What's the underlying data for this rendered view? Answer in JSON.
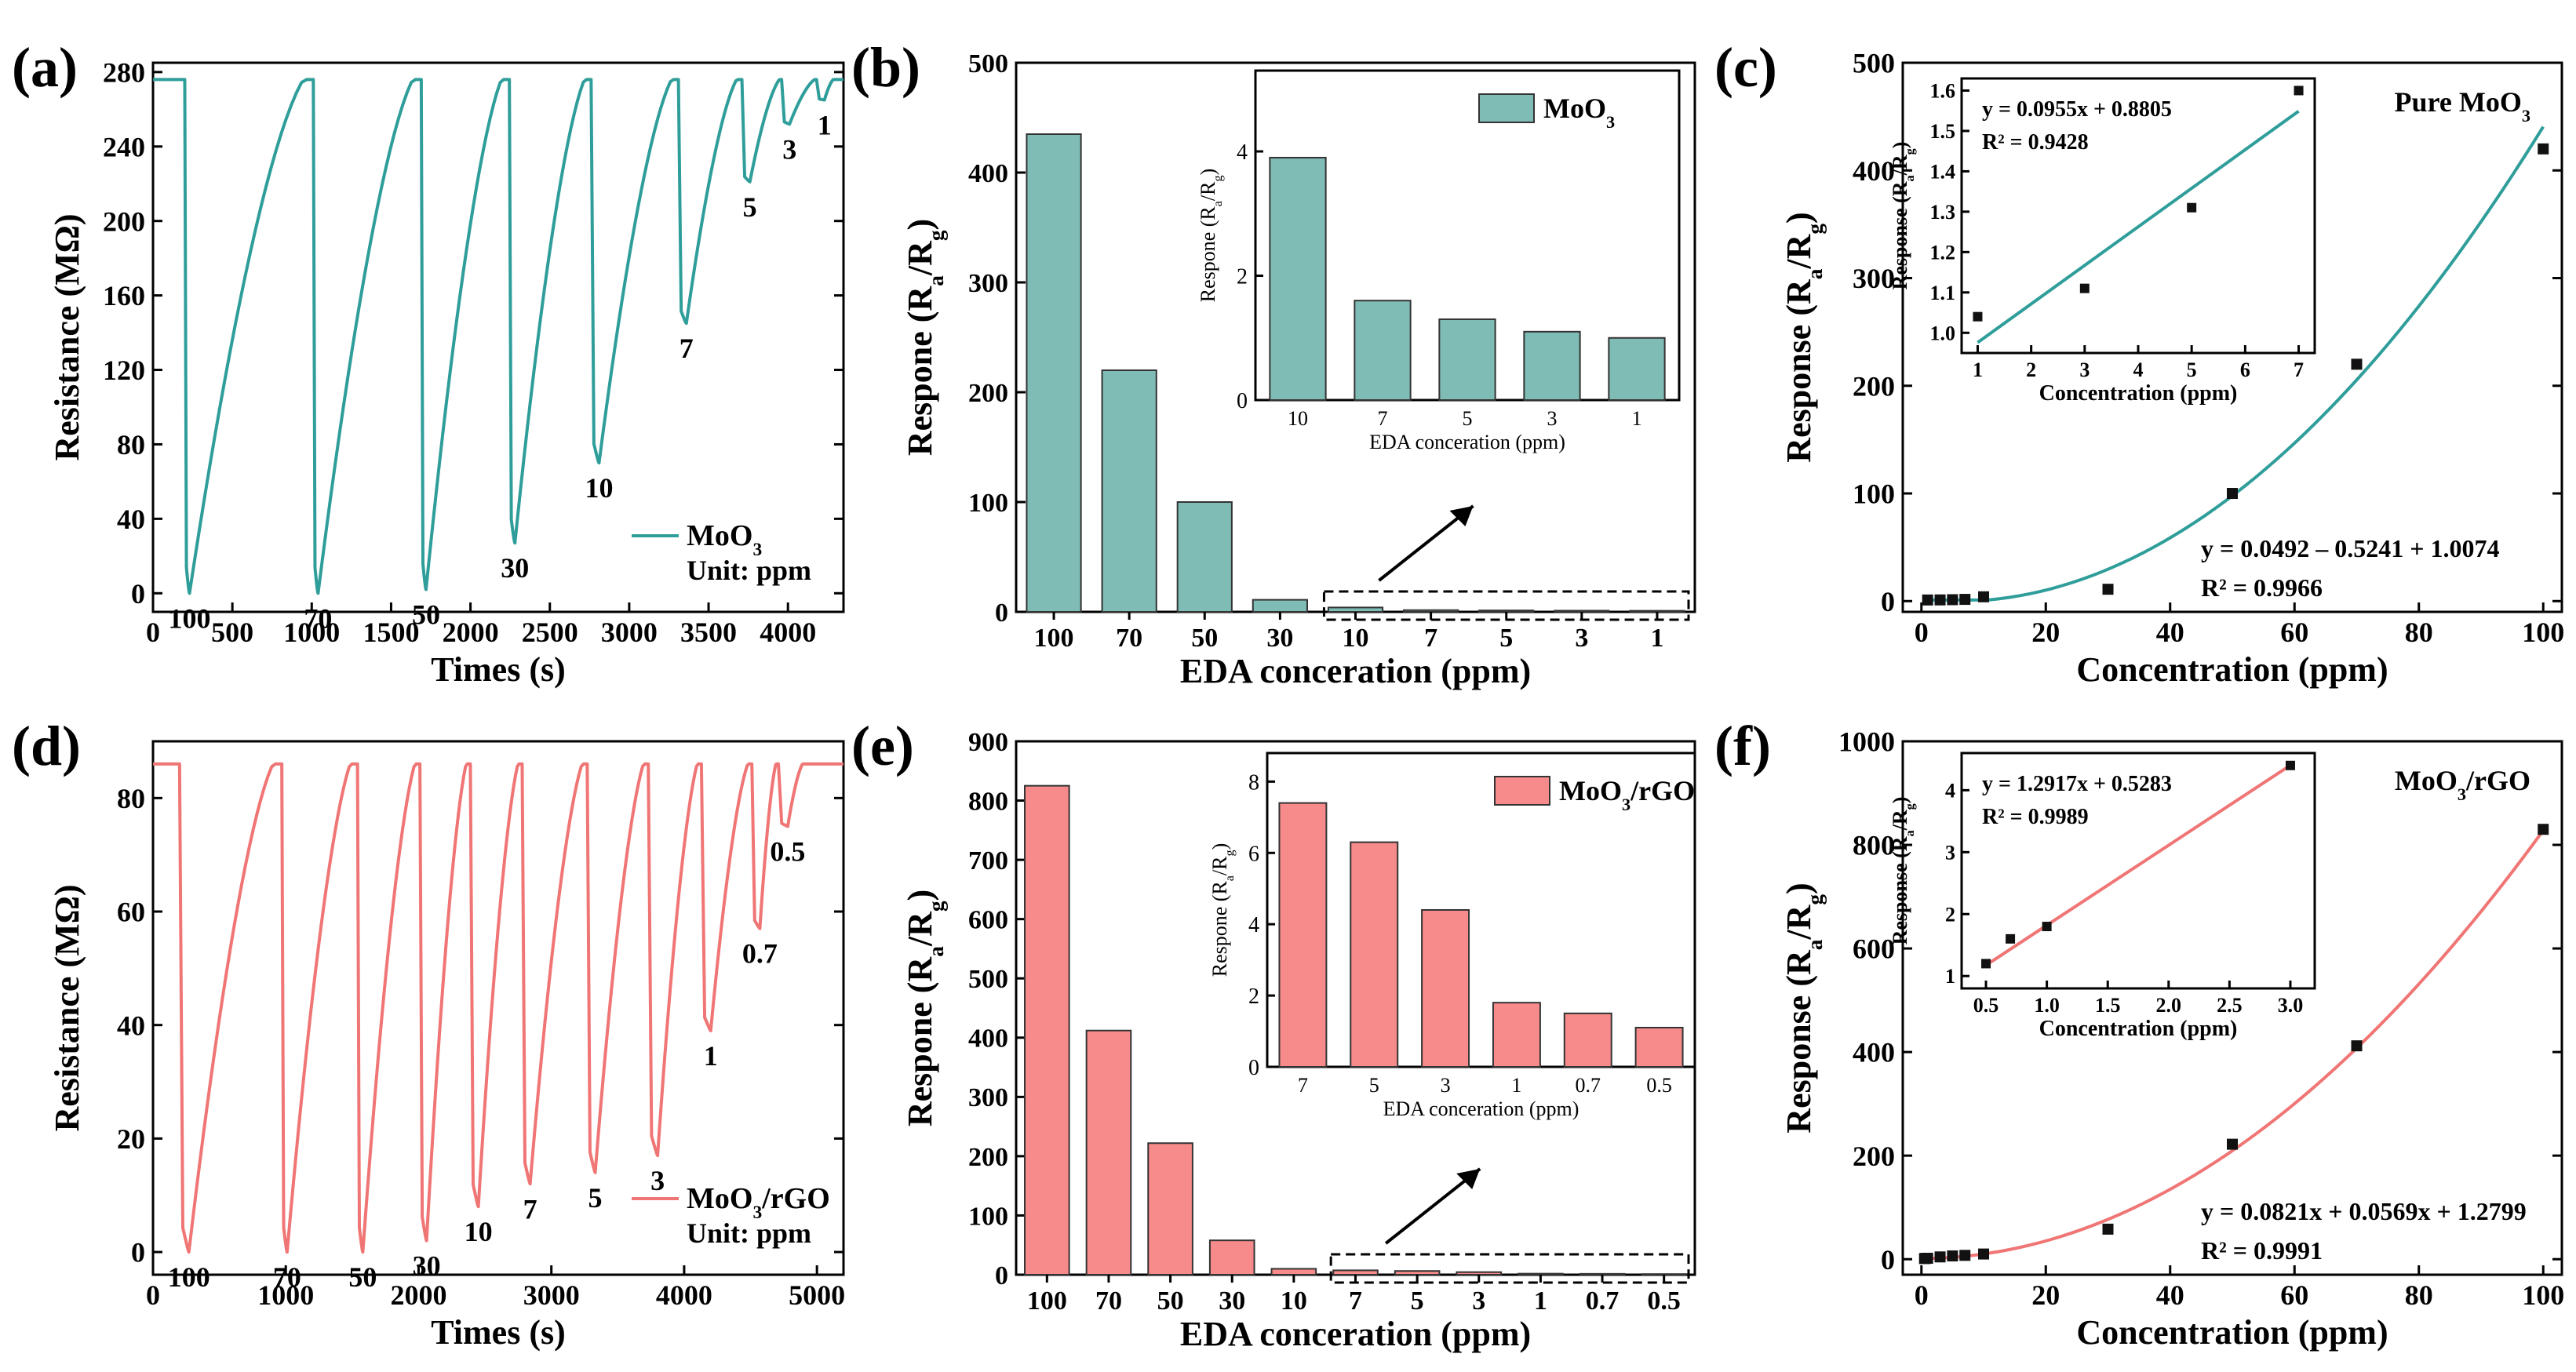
{
  "colors": {
    "teal": "#2f9e9a",
    "tealBar": "#7fbcb6",
    "red": "#f07575",
    "redBar": "#f78b8b",
    "axis": "#000000",
    "black": "#000000"
  },
  "panels": {
    "a": {
      "label": "(a)",
      "ylabel": "Resistance (MΩ)",
      "xlabel": "Times (s)",
      "yticks": [
        "0",
        "40",
        "80",
        "120",
        "160",
        "200",
        "240",
        "280"
      ],
      "xticks": [
        "0",
        "500",
        "1000",
        "1500",
        "2000",
        "2500",
        "3000",
        "3500",
        "4000"
      ],
      "legend": "MoO3",
      "unit": "Unit: ppm"
    },
    "b": {
      "label": "(b)",
      "ylabel": "Respone (Ra/Rg)",
      "xlabel": "EDA conceration (ppm)",
      "yticks": [
        "0",
        "100",
        "200",
        "300",
        "400",
        "500"
      ],
      "legend": "MoO3",
      "inset": {
        "ylabel": "Respone (Ra/Rg)",
        "xlabel": "EDA conceration (ppm)",
        "yticks": [
          "0",
          "2",
          "4"
        ]
      }
    },
    "c": {
      "label": "(c)",
      "ylabel": "Response (Ra/Rg)",
      "xlabel": "Concentration (ppm)",
      "yticks": [
        "0",
        "100",
        "200",
        "300",
        "400",
        "500"
      ],
      "xticks": [
        "0",
        "20",
        "40",
        "60",
        "80",
        "100"
      ],
      "title": "Pure MoO3",
      "eq": "y = 0.0492 – 0.5241 + 1.0074",
      "r2": "R² = 0.9966",
      "inset": {
        "ylabel": "Response (Ra/Rg)",
        "xlabel": "Concentration (ppm)",
        "yticks": [
          "1.0",
          "1.1",
          "1.2",
          "1.3",
          "1.4",
          "1.5",
          "1.6"
        ],
        "xticks": [
          "1",
          "2",
          "3",
          "4",
          "5",
          "6",
          "7"
        ],
        "eq": "y = 0.0955x + 0.8805",
        "r2": "R² = 0.9428"
      }
    },
    "d": {
      "label": "(d)",
      "ylabel": "Resistance (MΩ)",
      "xlabel": "Times (s)",
      "yticks": [
        "0",
        "20",
        "40",
        "60",
        "80"
      ],
      "xticks": [
        "0",
        "1000",
        "2000",
        "3000",
        "4000",
        "5000"
      ],
      "legend": "MoO3/rGO",
      "unit": "Unit: ppm"
    },
    "e": {
      "label": "(e)",
      "ylabel": "Respone (Ra/Rg)",
      "xlabel": "EDA conceration (ppm)",
      "yticks": [
        "0",
        "100",
        "200",
        "300",
        "400",
        "500",
        "600",
        "700",
        "800",
        "900"
      ],
      "legend": "MoO3/rGO",
      "inset": {
        "ylabel": "Respone (Ra/Rg)",
        "xlabel": "EDA conceration (ppm)",
        "yticks": [
          "0",
          "2",
          "4",
          "6",
          "8"
        ]
      }
    },
    "f": {
      "label": "(f)",
      "ylabel": "Response (Ra/Rg)",
      "xlabel": "Concentration (ppm)",
      "yticks": [
        "0",
        "200",
        "400",
        "600",
        "800",
        "1000"
      ],
      "xticks": [
        "0",
        "20",
        "40",
        "60",
        "80",
        "100"
      ],
      "title": "MoO3/rGO",
      "eq": "y = 0.0821x + 0.0569x + 1.2799",
      "r2": "R² = 0.9991",
      "inset": {
        "ylabel": "Response (Ra/Rg)",
        "xlabel": "Concentration (ppm)",
        "yticks": [
          "1",
          "2",
          "3",
          "4"
        ],
        "xticks": [
          "0.5",
          "1.0",
          "1.5",
          "2.0",
          "2.5",
          "3.0"
        ],
        "eq": "y = 1.2917x + 0.5283",
        "r2": "R² = 0.9989"
      }
    }
  },
  "chart_data": [
    {
      "type": "line",
      "panel": "a",
      "series": [
        {
          "name": "MoO3",
          "baseline": 276,
          "pulses": [
            {
              "t_on": 200,
              "t_min": 230,
              "t_off": 1000,
              "min": 0,
              "label": "100"
            },
            {
              "t_on": 1010,
              "t_min": 1040,
              "t_off": 1680,
              "min": 0,
              "label": "70"
            },
            {
              "t_on": 1690,
              "t_min": 1720,
              "t_off": 2230,
              "min": 2,
              "label": "50"
            },
            {
              "t_on": 2245,
              "t_min": 2280,
              "t_off": 2750,
              "min": 27,
              "label": "30"
            },
            {
              "t_on": 2760,
              "t_min": 2810,
              "t_off": 3300,
              "min": 70,
              "label": "10"
            },
            {
              "t_on": 3310,
              "t_min": 3360,
              "t_off": 3700,
              "min": 145,
              "label": "7"
            },
            {
              "t_on": 3710,
              "t_min": 3760,
              "t_off": 3960,
              "min": 221,
              "label": "5"
            },
            {
              "t_on": 3960,
              "t_min": 4010,
              "t_off": 4180,
              "min": 252,
              "label": "3"
            },
            {
              "t_on": 4180,
              "t_min": 4230,
              "t_off": 4290,
              "min": 265,
              "label": "1"
            }
          ]
        }
      ],
      "xlim": [
        0,
        4350
      ],
      "ylim": [
        -10,
        285
      ]
    },
    {
      "type": "bar",
      "panel": "b",
      "categories": [
        "100",
        "70",
        "50",
        "30",
        "10",
        "7",
        "5",
        "3",
        "1"
      ],
      "values": [
        435,
        220,
        100,
        11,
        4,
        1.6,
        1.3,
        1.1,
        1.0
      ],
      "ylim": [
        0,
        500
      ],
      "inset": {
        "categories": [
          "10",
          "7",
          "5",
          "3",
          "1"
        ],
        "values": [
          3.9,
          1.6,
          1.3,
          1.1,
          1.0
        ],
        "ylim": [
          0,
          5.3
        ]
      }
    },
    {
      "type": "scatter",
      "panel": "c",
      "x": [
        1,
        3,
        5,
        7,
        10,
        30,
        50,
        70,
        100
      ],
      "y": [
        1.04,
        1.11,
        1.31,
        1.6,
        4,
        11,
        100,
        220,
        420
      ],
      "xlim": [
        -3,
        103
      ],
      "ylim": [
        -10,
        500
      ],
      "inset": {
        "x": [
          1,
          3,
          5,
          7
        ],
        "y": [
          1.04,
          1.11,
          1.31,
          1.6
        ],
        "xlim": [
          0.7,
          7.3
        ],
        "ylim": [
          0.95,
          1.63
        ]
      }
    },
    {
      "type": "line",
      "panel": "d",
      "series": [
        {
          "name": "MoO3/rGO",
          "baseline": 86,
          "pulses": [
            {
              "t_on": 200,
              "t_min": 270,
              "t_off": 950,
              "min": 0,
              "label": "100"
            },
            {
              "t_on": 970,
              "t_min": 1010,
              "t_off": 1520,
              "min": 0,
              "label": "70"
            },
            {
              "t_on": 1540,
              "t_min": 1580,
              "t_off": 2000,
              "min": 0,
              "label": "50"
            },
            {
              "t_on": 2010,
              "t_min": 2060,
              "t_off": 2380,
              "min": 2,
              "label": "30"
            },
            {
              "t_on": 2390,
              "t_min": 2450,
              "t_off": 2770,
              "min": 8,
              "label": "10"
            },
            {
              "t_on": 2780,
              "t_min": 2840,
              "t_off": 3260,
              "min": 12,
              "label": "7"
            },
            {
              "t_on": 3270,
              "t_min": 3330,
              "t_off": 3720,
              "min": 14,
              "label": "5"
            },
            {
              "t_on": 3730,
              "t_min": 3800,
              "t_off": 4120,
              "min": 17,
              "label": "3"
            },
            {
              "t_on": 4130,
              "t_min": 4200,
              "t_off": 4500,
              "min": 39,
              "label": "1"
            },
            {
              "t_on": 4510,
              "t_min": 4570,
              "t_off": 4700,
              "min": 57,
              "label": "0.7"
            },
            {
              "t_on": 4710,
              "t_min": 4780,
              "t_off": 4900,
              "min": 75,
              "label": "0.5"
            }
          ]
        }
      ],
      "xlim": [
        0,
        5200
      ],
      "ylim": [
        -4,
        90
      ]
    },
    {
      "type": "bar",
      "panel": "e",
      "categories": [
        "100",
        "70",
        "50",
        "30",
        "10",
        "7",
        "5",
        "3",
        "1",
        "0.7",
        "0.5"
      ],
      "values": [
        825,
        412,
        222,
        58,
        10,
        7.4,
        6.3,
        4.4,
        1.8,
        1.5,
        1.1
      ],
      "ylim": [
        0,
        900
      ],
      "inset": {
        "categories": [
          "7",
          "5",
          "3",
          "1",
          "0.7",
          "0.5"
        ],
        "values": [
          7.4,
          6.3,
          4.4,
          1.8,
          1.5,
          1.1
        ],
        "ylim": [
          0,
          8.8
        ]
      }
    },
    {
      "type": "scatter",
      "panel": "f",
      "x": [
        0.5,
        0.7,
        1,
        3,
        5,
        7,
        10,
        30,
        50,
        70,
        100
      ],
      "y": [
        1.2,
        1.6,
        1.8,
        4.4,
        6.3,
        7.4,
        10,
        58,
        222,
        412,
        830
      ],
      "xlim": [
        -3,
        103
      ],
      "ylim": [
        -30,
        1000
      ],
      "inset": {
        "x": [
          0.5,
          0.7,
          1,
          3
        ],
        "y": [
          1.2,
          1.6,
          1.8,
          4.4
        ],
        "xlim": [
          0.3,
          3.2
        ],
        "ylim": [
          0.8,
          4.6
        ]
      }
    }
  ]
}
